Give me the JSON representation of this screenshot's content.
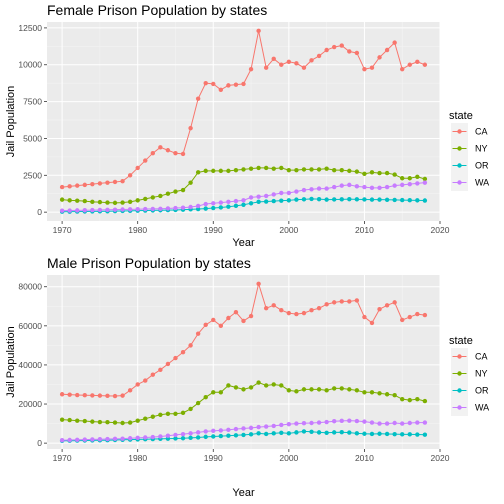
{
  "chart_data": [
    {
      "type": "line",
      "title": "Female Prison Population by states",
      "xlabel": "Year",
      "ylabel": "Jail Population",
      "xlim": [
        1968,
        2020
      ],
      "ylim": [
        -600,
        12900
      ],
      "xticks": [
        1970,
        1980,
        1990,
        2000,
        2010,
        2020
      ],
      "yticks": [
        0,
        2500,
        5000,
        7500,
        10000,
        12500
      ],
      "ytick_labels": [
        "0",
        "2500",
        "5000",
        "7500",
        "10000",
        "12500"
      ],
      "grid": true,
      "legend_title": "state",
      "legend_position": "right",
      "x": [
        1970,
        1971,
        1972,
        1973,
        1974,
        1975,
        1976,
        1977,
        1978,
        1979,
        1980,
        1981,
        1982,
        1983,
        1984,
        1985,
        1986,
        1987,
        1988,
        1989,
        1990,
        1991,
        1992,
        1993,
        1994,
        1995,
        1996,
        1997,
        1998,
        1999,
        2000,
        2001,
        2002,
        2003,
        2004,
        2005,
        2006,
        2007,
        2008,
        2009,
        2010,
        2011,
        2012,
        2013,
        2014,
        2015,
        2016,
        2017,
        2018
      ],
      "series": [
        {
          "name": "CA",
          "color": "#F8766D",
          "values": [
            1700,
            1750,
            1800,
            1850,
            1900,
            1950,
            2000,
            2050,
            2100,
            2500,
            3000,
            3500,
            4000,
            4400,
            4200,
            4000,
            3950,
            5700,
            7700,
            8750,
            8700,
            8300,
            8600,
            8650,
            8700,
            9700,
            12300,
            9800,
            10400,
            10000,
            10200,
            10100,
            9800,
            10300,
            10600,
            11000,
            11200,
            11300,
            10900,
            10800,
            9700,
            9800,
            10500,
            11000,
            11500,
            9700,
            10000,
            10200,
            10000
          ]
        },
        {
          "name": "NY",
          "color": "#7CAE00",
          "values": [
            850,
            800,
            780,
            750,
            700,
            680,
            650,
            630,
            650,
            700,
            800,
            900,
            1000,
            1100,
            1250,
            1400,
            1500,
            2000,
            2700,
            2800,
            2800,
            2800,
            2800,
            2850,
            2900,
            2950,
            3000,
            3000,
            2950,
            3000,
            2850,
            2850,
            2900,
            2900,
            2900,
            2950,
            2850,
            2850,
            2800,
            2750,
            2600,
            2700,
            2650,
            2650,
            2550,
            2300,
            2300,
            2400,
            2250
          ]
        },
        {
          "name": "OR",
          "color": "#00BFC4",
          "values": [
            30,
            35,
            40,
            45,
            50,
            55,
            60,
            70,
            80,
            90,
            100,
            110,
            120,
            130,
            140,
            150,
            170,
            190,
            210,
            240,
            280,
            320,
            370,
            430,
            500,
            600,
            700,
            720,
            750,
            780,
            800,
            850,
            870,
            900,
            880,
            850,
            860,
            870,
            880,
            870,
            860,
            850,
            850,
            840,
            830,
            820,
            810,
            800,
            790
          ]
        },
        {
          "name": "WA",
          "color": "#C77CFF",
          "values": [
            100,
            110,
            120,
            130,
            140,
            150,
            160,
            170,
            180,
            190,
            200,
            210,
            220,
            230,
            250,
            280,
            300,
            350,
            420,
            550,
            600,
            650,
            700,
            750,
            800,
            1000,
            1050,
            1100,
            1200,
            1300,
            1300,
            1400,
            1500,
            1550,
            1600,
            1600,
            1700,
            1800,
            1850,
            1750,
            1700,
            1650,
            1650,
            1700,
            1800,
            1850,
            1900,
            1950,
            2000
          ]
        }
      ]
    },
    {
      "type": "line",
      "title": "Male Prison Population by states",
      "xlabel": "Year",
      "ylabel": "Jail Population",
      "xlim": [
        1968,
        2020
      ],
      "ylim": [
        -3000,
        86000
      ],
      "xticks": [
        1970,
        1980,
        1990,
        2000,
        2010,
        2020
      ],
      "yticks": [
        0,
        20000,
        40000,
        60000,
        80000
      ],
      "ytick_labels": [
        "0",
        "20000",
        "40000",
        "60000",
        "80000"
      ],
      "grid": true,
      "legend_title": "state",
      "legend_position": "right",
      "x": [
        1970,
        1971,
        1972,
        1973,
        1974,
        1975,
        1976,
        1977,
        1978,
        1979,
        1980,
        1981,
        1982,
        1983,
        1984,
        1985,
        1986,
        1987,
        1988,
        1989,
        1990,
        1991,
        1992,
        1993,
        1994,
        1995,
        1996,
        1997,
        1998,
        1999,
        2000,
        2001,
        2002,
        2003,
        2004,
        2005,
        2006,
        2007,
        2008,
        2009,
        2010,
        2011,
        2012,
        2013,
        2014,
        2015,
        2016,
        2017,
        2018
      ],
      "series": [
        {
          "name": "CA",
          "color": "#F8766D",
          "values": [
            25000,
            24800,
            24600,
            24500,
            24400,
            24300,
            24200,
            24100,
            24300,
            27000,
            30000,
            32000,
            35000,
            37500,
            40500,
            43500,
            46500,
            50000,
            56000,
            60500,
            63000,
            60000,
            64000,
            67000,
            62500,
            65000,
            81500,
            69000,
            70500,
            68000,
            66500,
            66000,
            66500,
            68000,
            69000,
            71000,
            72000,
            72500,
            72500,
            73000,
            64500,
            61500,
            68500,
            70500,
            72000,
            63000,
            64500,
            66000,
            65500
          ]
        },
        {
          "name": "NY",
          "color": "#7CAE00",
          "values": [
            12000,
            11800,
            11500,
            11300,
            11000,
            10800,
            10700,
            10500,
            10300,
            10500,
            11500,
            12500,
            13500,
            14500,
            15000,
            15000,
            15500,
            17500,
            20500,
            23500,
            26000,
            26000,
            29500,
            28500,
            27500,
            28500,
            31000,
            29500,
            30000,
            29500,
            27000,
            26500,
            27500,
            27500,
            27500,
            27000,
            28000,
            28000,
            27500,
            27000,
            26000,
            26000,
            25500,
            25000,
            24500,
            22500,
            22000,
            22500,
            21500
          ]
        },
        {
          "name": "OR",
          "color": "#00BFC4",
          "values": [
            1200,
            1250,
            1300,
            1350,
            1400,
            1450,
            1500,
            1600,
            1700,
            1800,
            1900,
            2000,
            2100,
            2200,
            2300,
            2400,
            2500,
            2700,
            2900,
            3200,
            3400,
            3600,
            3800,
            4000,
            4200,
            4500,
            5000,
            4700,
            5000,
            5300,
            5000,
            5500,
            6000,
            5800,
            5500,
            5300,
            5500,
            5600,
            5400,
            5000,
            4800,
            4700,
            4800,
            4700,
            4600,
            4500,
            4500,
            4400,
            4300
          ]
        },
        {
          "name": "WA",
          "color": "#C77CFF",
          "values": [
            1500,
            1600,
            1700,
            1800,
            1900,
            2000,
            2100,
            2200,
            2300,
            2500,
            2700,
            2900,
            3100,
            3400,
            3800,
            4200,
            4600,
            5000,
            5500,
            6000,
            6300,
            6500,
            6800,
            7200,
            7500,
            7800,
            8200,
            8500,
            8800,
            9300,
            9700,
            10000,
            10200,
            10300,
            10500,
            10800,
            11200,
            11400,
            11500,
            11300,
            11000,
            10500,
            10000,
            10000,
            10300,
            10000,
            10300,
            10500,
            10500
          ]
        }
      ]
    }
  ]
}
